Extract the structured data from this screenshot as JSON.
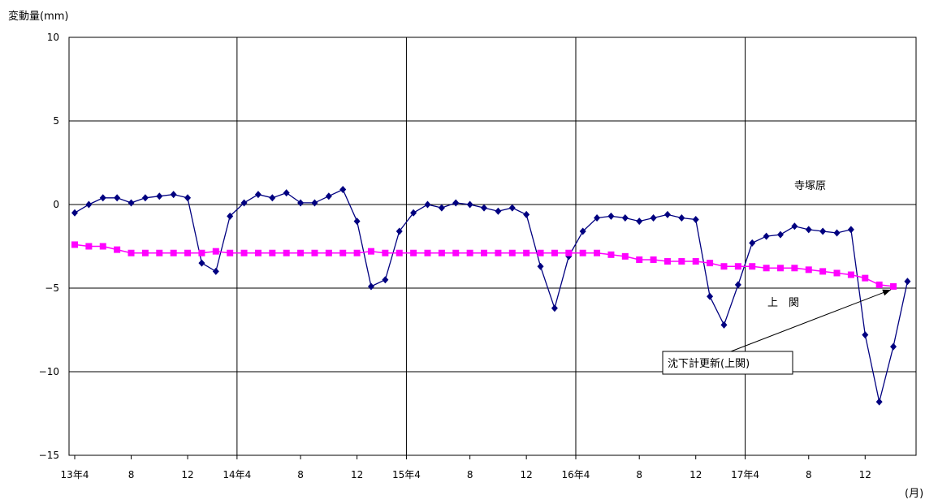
{
  "chart_data": {
    "type": "line",
    "ylabel": "変動量(mm)",
    "xlabel": "(月)",
    "ylim": [
      -15,
      10
    ],
    "yticks": [
      10,
      5,
      0,
      -5,
      -10,
      -15
    ],
    "ytick_labels": [
      "10",
      "5",
      "0",
      "−5",
      "−10",
      "−15"
    ],
    "x_tick_labels": [
      "13年4",
      "8",
      "12",
      "14年4",
      "8",
      "12",
      "15年4",
      "8",
      "12",
      "16年4",
      "8",
      "12",
      "17年4",
      "8",
      "12"
    ],
    "grid": "vertical lines at each year start, horizontal lines at every 5 mm",
    "series": [
      {
        "name": "寺塚原",
        "color": "#000080",
        "marker": "diamond",
        "values": [
          -0.5,
          0.0,
          0.4,
          0.4,
          0.1,
          0.4,
          0.5,
          0.6,
          0.4,
          -3.5,
          -4.0,
          -0.7,
          0.1,
          0.6,
          0.4,
          0.7,
          0.1,
          0.1,
          0.5,
          0.9,
          -1.0,
          -4.9,
          -4.5,
          -1.6,
          -0.5,
          0.0,
          -0.2,
          0.1,
          0.0,
          -0.2,
          -0.4,
          -0.2,
          -0.6,
          -3.7,
          -6.2,
          -3.1,
          -1.6,
          -0.8,
          -0.7,
          -0.8,
          -1.0,
          -0.8,
          -0.6,
          -0.8,
          -0.9,
          -5.5,
          -7.2,
          -4.8,
          -2.3,
          -1.9,
          -1.8,
          -1.3,
          -1.5,
          -1.6,
          -1.7,
          -1.5,
          -7.8,
          -11.8,
          -8.5,
          -4.6
        ]
      },
      {
        "name": "上　関",
        "color": "#FF00FF",
        "marker": "square",
        "values": [
          -2.4,
          -2.5,
          -2.5,
          -2.7,
          -2.9,
          -2.9,
          -2.9,
          -2.9,
          -2.9,
          -2.9,
          -2.8,
          -2.9,
          -2.9,
          -2.9,
          -2.9,
          -2.9,
          -2.9,
          -2.9,
          -2.9,
          -2.9,
          -2.9,
          -2.8,
          -2.9,
          -2.9,
          -2.9,
          -2.9,
          -2.9,
          -2.9,
          -2.9,
          -2.9,
          -2.9,
          -2.9,
          -2.9,
          -2.9,
          -2.9,
          -2.9,
          -2.9,
          -2.9,
          -3.0,
          -3.1,
          -3.3,
          -3.3,
          -3.4,
          -3.4,
          -3.4,
          -3.5,
          -3.7,
          -3.7,
          -3.7,
          -3.8,
          -3.8,
          -3.8,
          -3.9,
          -4.0,
          -4.1,
          -4.2,
          -4.4,
          -4.8,
          -4.9
        ]
      }
    ],
    "annotations": [
      {
        "text": "沈下計更新(上関)",
        "points_to_index": 58,
        "series": "上　関"
      }
    ]
  }
}
